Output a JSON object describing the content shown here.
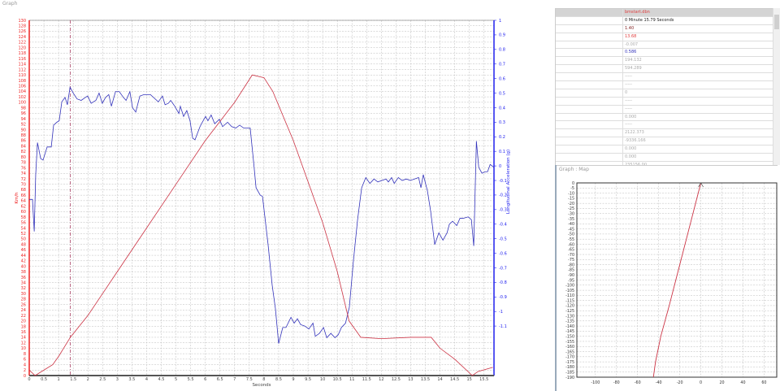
{
  "graph_panel": {
    "title": "Graph"
  },
  "map_panel": {
    "title": "Graph : Map"
  },
  "colors": {
    "speed": "#cc3344",
    "accel": "#3333bb",
    "grid": "#bbbbbb",
    "left_axis": "#ee2222",
    "right_axis": "#2222ee"
  },
  "table": {
    "rows": [
      {
        "value": "bmstart.dbn",
        "color": "#e04040"
      },
      {
        "value": "0 Minute 15.79 Seconds",
        "color": "#222222"
      },
      {
        "value": "1.40",
        "color": "#802020"
      },
      {
        "value": "13.68",
        "color": "#e04040"
      },
      {
        "value": "-0.007",
        "color": "#aaaaaa"
      },
      {
        "value": "0.586",
        "color": "#3333bb"
      },
      {
        "value": "194.132",
        "color": "#aaaaaa"
      },
      {
        "value": "594.289",
        "color": "#aaaaaa"
      },
      {
        "value": "-----",
        "color": "#aaaaaa"
      },
      {
        "value": "-----",
        "color": "#aaaaaa"
      },
      {
        "value": "0",
        "color": "#aaaaaa"
      },
      {
        "value": "-----",
        "color": "#aaaaaa"
      },
      {
        "value": "-----",
        "color": "#aaaaaa"
      },
      {
        "value": "0.000",
        "color": "#aaaaaa"
      },
      {
        "value": "-----",
        "color": "#aaaaaa"
      },
      {
        "value": "2122.373",
        "color": "#aaaaaa"
      },
      {
        "value": "-9336.166",
        "color": "#aaaaaa"
      },
      {
        "value": "0.000",
        "color": "#aaaaaa"
      },
      {
        "value": "0.000",
        "color": "#aaaaaa"
      },
      {
        "value": "235156.00",
        "color": "#aaaaaa"
      },
      {
        "value": "1.79",
        "color": "#aaaaaa"
      },
      {
        "value": "0.40",
        "color": "#aaaaaa"
      }
    ]
  },
  "chart_data": [
    {
      "type": "line",
      "xlabel": "Seconds",
      "ylabel": "Km/h",
      "y2label": "Longitudinal Acceleration (g)",
      "xlim": [
        0,
        15.84
      ],
      "ylim": [
        0,
        130
      ],
      "y2lim": [
        -1.44,
        1
      ],
      "xticks": [
        0,
        0.5,
        1,
        1.5,
        2,
        2.5,
        3,
        3.5,
        4,
        4.5,
        5,
        5.5,
        6,
        6.5,
        7,
        7.5,
        8,
        8.5,
        9,
        9.5,
        10,
        10.5,
        11,
        11.5,
        12,
        12.5,
        13,
        13.5,
        14,
        14.5,
        15,
        15.5
      ],
      "yticks_step": 2,
      "y2ticks": [
        1,
        0.9,
        0.8,
        0.7,
        0.6,
        0.5,
        0.4,
        0.3,
        0.2,
        0.1,
        0,
        -0.1,
        -0.2,
        -0.3,
        -0.4,
        -0.5,
        -0.6,
        -0.7,
        -0.8,
        -0.9,
        -1,
        -1.1
      ],
      "grid": true,
      "cursor_x": 1.4,
      "speed": {
        "x": [
          0,
          0.2,
          0.5,
          0.8,
          1.0,
          1.4,
          2,
          3,
          4,
          5,
          6,
          7,
          7.6,
          8.0,
          8.3,
          9,
          10,
          10.5,
          10.9,
          11.3,
          12,
          13,
          13.7,
          14,
          14.5,
          15.1,
          15.3,
          15.8
        ],
        "y": [
          2,
          0,
          2,
          4,
          7,
          14,
          22,
          38,
          54,
          70,
          86,
          100,
          110,
          109,
          104,
          86,
          56,
          38,
          20,
          14,
          13.5,
          14,
          14,
          10,
          6,
          0,
          1.5,
          3
        ]
      },
      "accel": {
        "x": [
          0,
          0.11,
          0.17,
          0.22,
          0.28,
          0.39,
          0.47,
          0.61,
          0.75,
          0.83,
          0.94,
          1.02,
          1.11,
          1.22,
          1.3,
          1.39,
          1.5,
          1.63,
          1.77,
          1.91,
          1.99,
          2.11,
          2.27,
          2.38,
          2.49,
          2.6,
          2.71,
          2.8,
          2.94,
          3.07,
          3.21,
          3.3,
          3.43,
          3.52,
          3.63,
          3.77,
          3.91,
          4.13,
          4.4,
          4.54,
          4.63,
          4.74,
          4.82,
          4.96,
          5.1,
          5.15,
          5.26,
          5.37,
          5.48,
          5.57,
          5.65,
          5.82,
          5.9,
          6.01,
          6.09,
          6.2,
          6.32,
          6.48,
          6.59,
          6.76,
          6.9,
          7.04,
          7.17,
          7.31,
          7.45,
          7.53,
          7.65,
          7.73,
          7.87,
          7.95,
          8.14,
          8.28,
          8.39,
          8.5,
          8.64,
          8.75,
          8.92,
          9.03,
          9.14,
          9.25,
          9.39,
          9.53,
          9.67,
          9.75,
          9.89,
          10.03,
          10.14,
          10.28,
          10.42,
          10.53,
          10.64,
          10.78,
          10.91,
          11.05,
          11.19,
          11.33,
          11.47,
          11.61,
          11.75,
          11.88,
          12.02,
          12.16,
          12.24,
          12.35,
          12.44,
          12.58,
          12.71,
          12.85,
          12.99,
          13.13,
          13.27,
          13.35,
          13.43,
          13.57,
          13.68,
          13.82,
          13.96,
          14.1,
          14.24,
          14.32,
          14.43,
          14.57,
          14.68,
          14.79,
          14.96,
          15.07,
          15.15,
          15.24,
          15.32,
          15.43,
          15.54,
          15.62,
          15.71,
          15.84
        ],
        "y": [
          -0.23,
          -0.23,
          -0.45,
          -0.06,
          0.16,
          0.05,
          0.04,
          0.13,
          0.13,
          0.28,
          0.3,
          0.31,
          0.44,
          0.47,
          0.42,
          0.54,
          0.5,
          0.46,
          0.45,
          0.47,
          0.48,
          0.43,
          0.45,
          0.5,
          0.43,
          0.47,
          0.49,
          0.41,
          0.51,
          0.51,
          0.47,
          0.45,
          0.51,
          0.4,
          0.37,
          0.48,
          0.49,
          0.49,
          0.44,
          0.48,
          0.42,
          0.43,
          0.45,
          0.41,
          0.36,
          0.41,
          0.34,
          0.38,
          0.31,
          0.19,
          0.18,
          0.27,
          0.3,
          0.34,
          0.31,
          0.35,
          0.29,
          0.32,
          0.27,
          0.3,
          0.27,
          0.26,
          0.28,
          0.26,
          0.26,
          0.26,
          0.02,
          -0.15,
          -0.2,
          -0.21,
          -0.54,
          -0.82,
          -0.98,
          -1.22,
          -1.11,
          -1.11,
          -1.04,
          -1.08,
          -1.05,
          -1.09,
          -1.1,
          -1.12,
          -1.08,
          -1.17,
          -1.15,
          -1.11,
          -1.18,
          -1.15,
          -1.18,
          -1.16,
          -1.11,
          -1.08,
          -0.97,
          -0.65,
          -0.37,
          -0.15,
          -0.08,
          -0.12,
          -0.09,
          -0.11,
          -0.1,
          -0.09,
          -0.11,
          -0.08,
          -0.12,
          -0.08,
          -0.1,
          -0.09,
          -0.1,
          -0.09,
          -0.08,
          -0.15,
          -0.06,
          -0.17,
          -0.31,
          -0.54,
          -0.46,
          -0.51,
          -0.46,
          -0.4,
          -0.38,
          -0.41,
          -0.36,
          -0.36,
          -0.35,
          -0.37,
          -0.55,
          0.17,
          -0.01,
          -0.05,
          -0.04,
          -0.04,
          0.01,
          -0.01
        ]
      }
    },
    {
      "type": "line",
      "xlim": [
        -117.6,
        72
      ],
      "ylim": [
        -190,
        0
      ],
      "xticks": [
        -100,
        -80,
        -60,
        -40,
        -20,
        0,
        20,
        40,
        60
      ],
      "yticks_step": 5,
      "grid": true,
      "track": {
        "x": [
          0,
          -5,
          -10,
          -20,
          -30,
          -38,
          -43,
          -45
        ],
        "y": [
          0,
          -20,
          -40,
          -80,
          -120,
          -150,
          -175,
          -190
        ]
      }
    }
  ]
}
